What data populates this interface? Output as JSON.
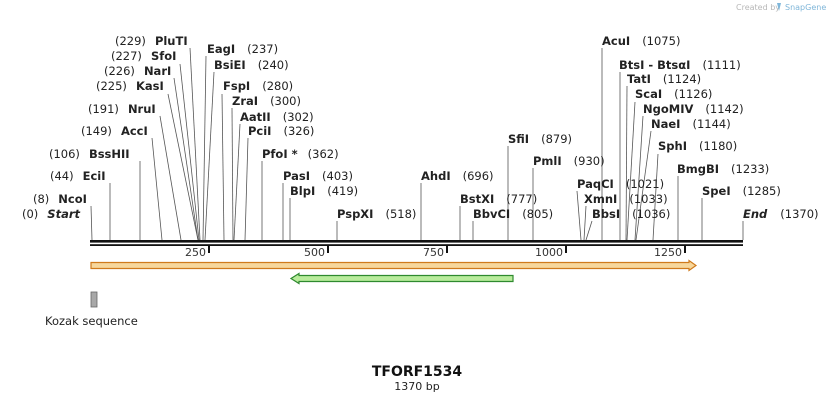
{
  "credit": {
    "prefix": "Created by",
    "brand": "SnapGene"
  },
  "plasmid": {
    "name": "TFORF1534",
    "length_label": "1370 bp",
    "length": 1370
  },
  "ruler": {
    "ticks": [
      250,
      500,
      750,
      1000,
      1250
    ]
  },
  "ends": [
    {
      "label": "Start",
      "pos_label": "(0)"
    },
    {
      "label": "End",
      "pos_label": "(1370)"
    }
  ],
  "sites": [
    {
      "name": "NcoI",
      "pos": "(8)"
    },
    {
      "name": "EciI",
      "pos": "(44)"
    },
    {
      "name": "BssHII",
      "pos": "(106)"
    },
    {
      "name": "AccI",
      "pos": "(149)"
    },
    {
      "name": "NruI",
      "pos": "(191)"
    },
    {
      "name": "KasI",
      "pos": "(225)"
    },
    {
      "name": "NarI",
      "pos": "(226)"
    },
    {
      "name": "SfoI",
      "pos": "(227)"
    },
    {
      "name": "PluTI",
      "pos": "(229)"
    },
    {
      "name": "EagI",
      "pos": "(237)"
    },
    {
      "name": "BsiEI",
      "pos": "(240)"
    },
    {
      "name": "FspI",
      "pos": "(280)"
    },
    {
      "name": "ZraI",
      "pos": "(300)"
    },
    {
      "name": "AatII",
      "pos": "(302)"
    },
    {
      "name": "PciI",
      "pos": "(326)"
    },
    {
      "name": "PfoI *",
      "pos": "(362)"
    },
    {
      "name": "PasI",
      "pos": "(403)"
    },
    {
      "name": "BlpI",
      "pos": "(419)"
    },
    {
      "name": "PspXI",
      "pos": "(518)"
    },
    {
      "name": "AhdI",
      "pos": "(696)"
    },
    {
      "name": "BstXI",
      "pos": "(777)"
    },
    {
      "name": "BbvCI",
      "pos": "(805)"
    },
    {
      "name": "SfiI",
      "pos": "(879)"
    },
    {
      "name": "PmlI",
      "pos": "(930)"
    },
    {
      "name": "PaqCI",
      "pos": "(1021)"
    },
    {
      "name": "XmnI",
      "pos": "(1033)"
    },
    {
      "name": "BbsI",
      "pos": "(1036)"
    },
    {
      "name": "AcuI",
      "pos": "(1075)"
    },
    {
      "name": "BtsI - BtsαI",
      "pos": "(1111)"
    },
    {
      "name": "TatI",
      "pos": "(1124)"
    },
    {
      "name": "ScaI",
      "pos": "(1126)"
    },
    {
      "name": "NgoMIV",
      "pos": "(1142)"
    },
    {
      "name": "NaeI",
      "pos": "(1144)"
    },
    {
      "name": "SphI",
      "pos": "(1180)"
    },
    {
      "name": "BmgBI",
      "pos": "(1233)"
    },
    {
      "name": "SpeI",
      "pos": "(1285)"
    }
  ],
  "features": [
    {
      "label": "Kozak sequence"
    }
  ],
  "colors": {
    "orange_fill": "#f7d79c",
    "orange_edge": "#cf7a1c",
    "green_fill": "#b9ec9c",
    "green_edge": "#2f8a2f",
    "kozak": "#a8a8a8"
  }
}
